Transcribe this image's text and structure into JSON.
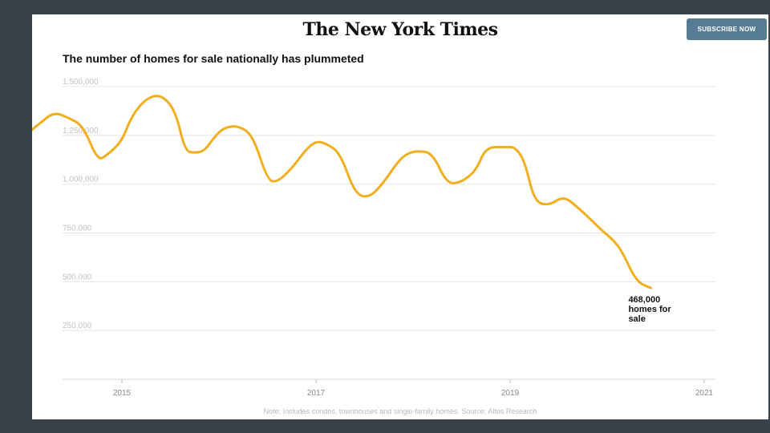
{
  "header": {
    "masthead": "The New York Times",
    "subscribe_label": "SUBSCRIBE NOW"
  },
  "colors": {
    "line": "#f2ae1c",
    "grid": "#e4e4e4",
    "tick_text": "#c2c2c2",
    "subscribe_bg": "#567b95"
  },
  "chart_data": {
    "type": "line",
    "title": "The number of homes for sale nationally has plummeted",
    "xlabel": "",
    "ylabel": "",
    "ylim": [
      0,
      1500000
    ],
    "xlim": [
      2014.0,
      2021.1
    ],
    "yticks": [
      250000,
      500000,
      750000,
      1000000,
      1250000,
      1500000
    ],
    "ytick_labels": [
      "250,000",
      "500,000",
      "750,000",
      "1,000,000",
      "1,250,000",
      "1,500,000"
    ],
    "xticks": [
      2015,
      2017,
      2019,
      2021
    ],
    "xtick_labels": [
      "2015",
      "2017",
      "2019",
      "2021"
    ],
    "grid": true,
    "series": [
      {
        "name": "",
        "x": [
          2014.0,
          2014.15,
          2014.3,
          2014.45,
          2014.6,
          2014.75,
          2014.85,
          2015.0,
          2015.1,
          2015.25,
          2015.4,
          2015.55,
          2015.65,
          2015.75,
          2015.85,
          2015.95,
          2016.05,
          2016.2,
          2016.35,
          2016.5,
          2016.6,
          2016.75,
          2016.9,
          2017.0,
          2017.1,
          2017.25,
          2017.4,
          2017.55,
          2017.7,
          2017.85,
          2017.95,
          2018.05,
          2018.2,
          2018.35,
          2018.5,
          2018.65,
          2018.75,
          2018.95,
          2019.05,
          2019.15,
          2019.25,
          2019.4,
          2019.55,
          2019.7,
          2019.85,
          2019.95,
          2020.05,
          2020.15,
          2020.3,
          2020.45,
          2020.6,
          2020.75,
          2020.85,
          2020.95,
          2021.05,
          2021.1
        ],
        "values": [
          1250000,
          1310000,
          1370000,
          1340000,
          1300000,
          1120000,
          1150000,
          1220000,
          1350000,
          1440000,
          1460000,
          1380000,
          1170000,
          1160000,
          1170000,
          1240000,
          1290000,
          1300000,
          1250000,
          1020000,
          1010000,
          1080000,
          1180000,
          1220000,
          1210000,
          1160000,
          950000,
          930000,
          1010000,
          1120000,
          1160000,
          1170000,
          1160000,
          1000000,
          1010000,
          1070000,
          1190000,
          1190000,
          1190000,
          1120000,
          910000,
          890000,
          940000,
          880000,
          810000,
          760000,
          720000,
          660000,
          500000,
          468000,
          468000,
          468000,
          468000,
          468000,
          468000,
          468000
        ]
      }
    ],
    "annotations": [
      {
        "x": 2020.45,
        "y": 468000,
        "text": "468,000 homes for sale"
      }
    ],
    "note": "Note: Includes condos, townhouses and single-family homes. Source: Altos Research"
  }
}
